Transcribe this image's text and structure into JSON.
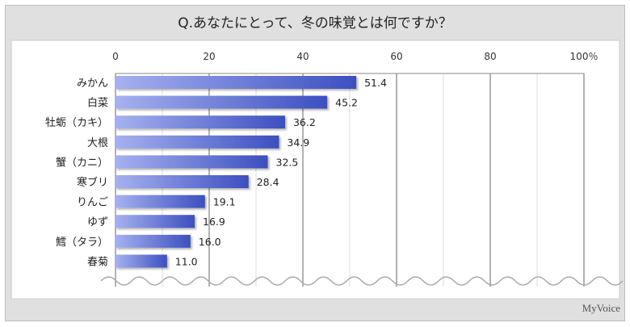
{
  "chart_data": {
    "type": "bar",
    "title": "Q.あなたにとって、冬の味覚とは何ですか？",
    "categories": [
      "みかん",
      "白菜",
      "牡蛎（カキ）",
      "大根",
      "蟹（カニ）",
      "寒ブリ",
      "りんご",
      "ゆず",
      "鱈（タラ）",
      "春菊"
    ],
    "values": [
      51.4,
      45.2,
      36.2,
      34.9,
      32.5,
      28.4,
      19.1,
      16.9,
      16.0,
      11.0
    ],
    "value_labels": [
      "51.4",
      "45.2",
      "36.2",
      "34.9",
      "32.5",
      "28.4",
      "19.1",
      "16.9",
      "16.0",
      "11.0"
    ],
    "xlim": [
      0,
      100
    ],
    "ticks": [
      "0",
      "20",
      "40",
      "60",
      "80",
      "100％"
    ],
    "tick_values": [
      0,
      20,
      40,
      60,
      80,
      100
    ],
    "xlabel": "",
    "ylabel": "",
    "grid": true,
    "bar_color_start": "#a6b1f0",
    "bar_color_end": "#3c4fc0"
  },
  "brand": "MyVoice"
}
